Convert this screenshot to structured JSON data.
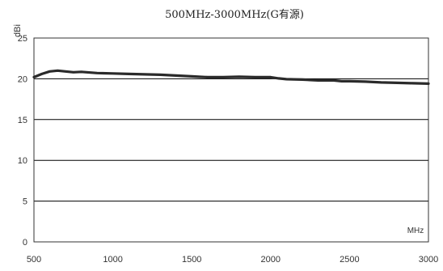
{
  "chart_data": {
    "type": "line",
    "title": "500MHz-3000MHz(G有源)",
    "xlabel": "MHz",
    "ylabel": "dBi",
    "xlim": [
      500,
      3000
    ],
    "ylim": [
      0,
      25
    ],
    "x_ticks": [
      "500",
      "1000",
      "1500",
      "2000",
      "2500",
      "3000"
    ],
    "y_ticks": [
      "0",
      "5",
      "10",
      "15",
      "20",
      "25"
    ],
    "grid": "horizontal",
    "series": [
      {
        "color": "#2a2a2a",
        "points": [
          [
            500,
            20.2
          ],
          [
            550,
            20.6
          ],
          [
            600,
            20.9
          ],
          [
            650,
            21.0
          ],
          [
            700,
            20.9
          ],
          [
            750,
            20.8
          ],
          [
            800,
            20.85
          ],
          [
            900,
            20.7
          ],
          [
            1000,
            20.65
          ],
          [
            1100,
            20.6
          ],
          [
            1200,
            20.55
          ],
          [
            1300,
            20.5
          ],
          [
            1400,
            20.4
          ],
          [
            1500,
            20.3
          ],
          [
            1600,
            20.2
          ],
          [
            1700,
            20.2
          ],
          [
            1800,
            20.25
          ],
          [
            1900,
            20.2
          ],
          [
            2000,
            20.2
          ],
          [
            2050,
            20.05
          ],
          [
            2100,
            19.95
          ],
          [
            2200,
            19.9
          ],
          [
            2300,
            19.8
          ],
          [
            2400,
            19.8
          ],
          [
            2450,
            19.7
          ],
          [
            2500,
            19.7
          ],
          [
            2600,
            19.65
          ],
          [
            2700,
            19.55
          ],
          [
            2800,
            19.5
          ],
          [
            2900,
            19.45
          ],
          [
            3000,
            19.4
          ]
        ]
      }
    ]
  }
}
